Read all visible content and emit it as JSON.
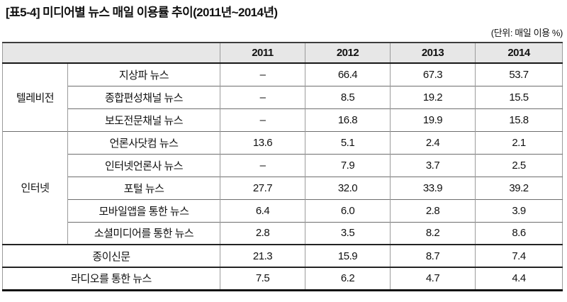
{
  "title": "[표5-4] 미디어별 뉴스 매일 이용률 추이(2011년~2014년)",
  "unit_note": "(단위: 매일 이용 %)",
  "colors": {
    "header_bg": "#e7e7e7",
    "border_light": "#9b9b9b",
    "border_mid": "#6e6e6e",
    "border_strong": "#161616",
    "text": "#111111"
  },
  "table": {
    "corner": "",
    "years": [
      "2011",
      "2012",
      "2013",
      "2014"
    ],
    "groups": [
      {
        "label": "텔레비전"
      },
      {
        "label": "인터넷"
      }
    ],
    "rows": [
      {
        "label": "지상파 뉴스",
        "values": [
          "–",
          "66.4",
          "67.3",
          "53.7"
        ]
      },
      {
        "label": "종합편성채널 뉴스",
        "values": [
          "–",
          "8.5",
          "19.2",
          "15.5"
        ]
      },
      {
        "label": "보도전문채널 뉴스",
        "values": [
          "–",
          "16.8",
          "19.9",
          "15.8"
        ]
      },
      {
        "label": "언론사닷컴 뉴스",
        "values": [
          "13.6",
          "5.1",
          "2.4",
          "2.1"
        ]
      },
      {
        "label": "인터넷언론사 뉴스",
        "values": [
          "–",
          "7.9",
          "3.7",
          "2.5"
        ]
      },
      {
        "label": "포털 뉴스",
        "values": [
          "27.7",
          "32.0",
          "33.9",
          "39.2"
        ]
      },
      {
        "label": "모바일앱을 통한 뉴스",
        "values": [
          "6.4",
          "6.0",
          "2.8",
          "3.9"
        ]
      },
      {
        "label": "소셜미디어를 통한 뉴스",
        "values": [
          "2.8",
          "3.5",
          "8.2",
          "8.6"
        ]
      },
      {
        "label": "종이신문",
        "values": [
          "21.3",
          "15.9",
          "8.7",
          "7.4"
        ]
      },
      {
        "label": "라디오를 통한 뉴스",
        "values": [
          "7.5",
          "6.2",
          "4.7",
          "4.4"
        ]
      }
    ]
  }
}
